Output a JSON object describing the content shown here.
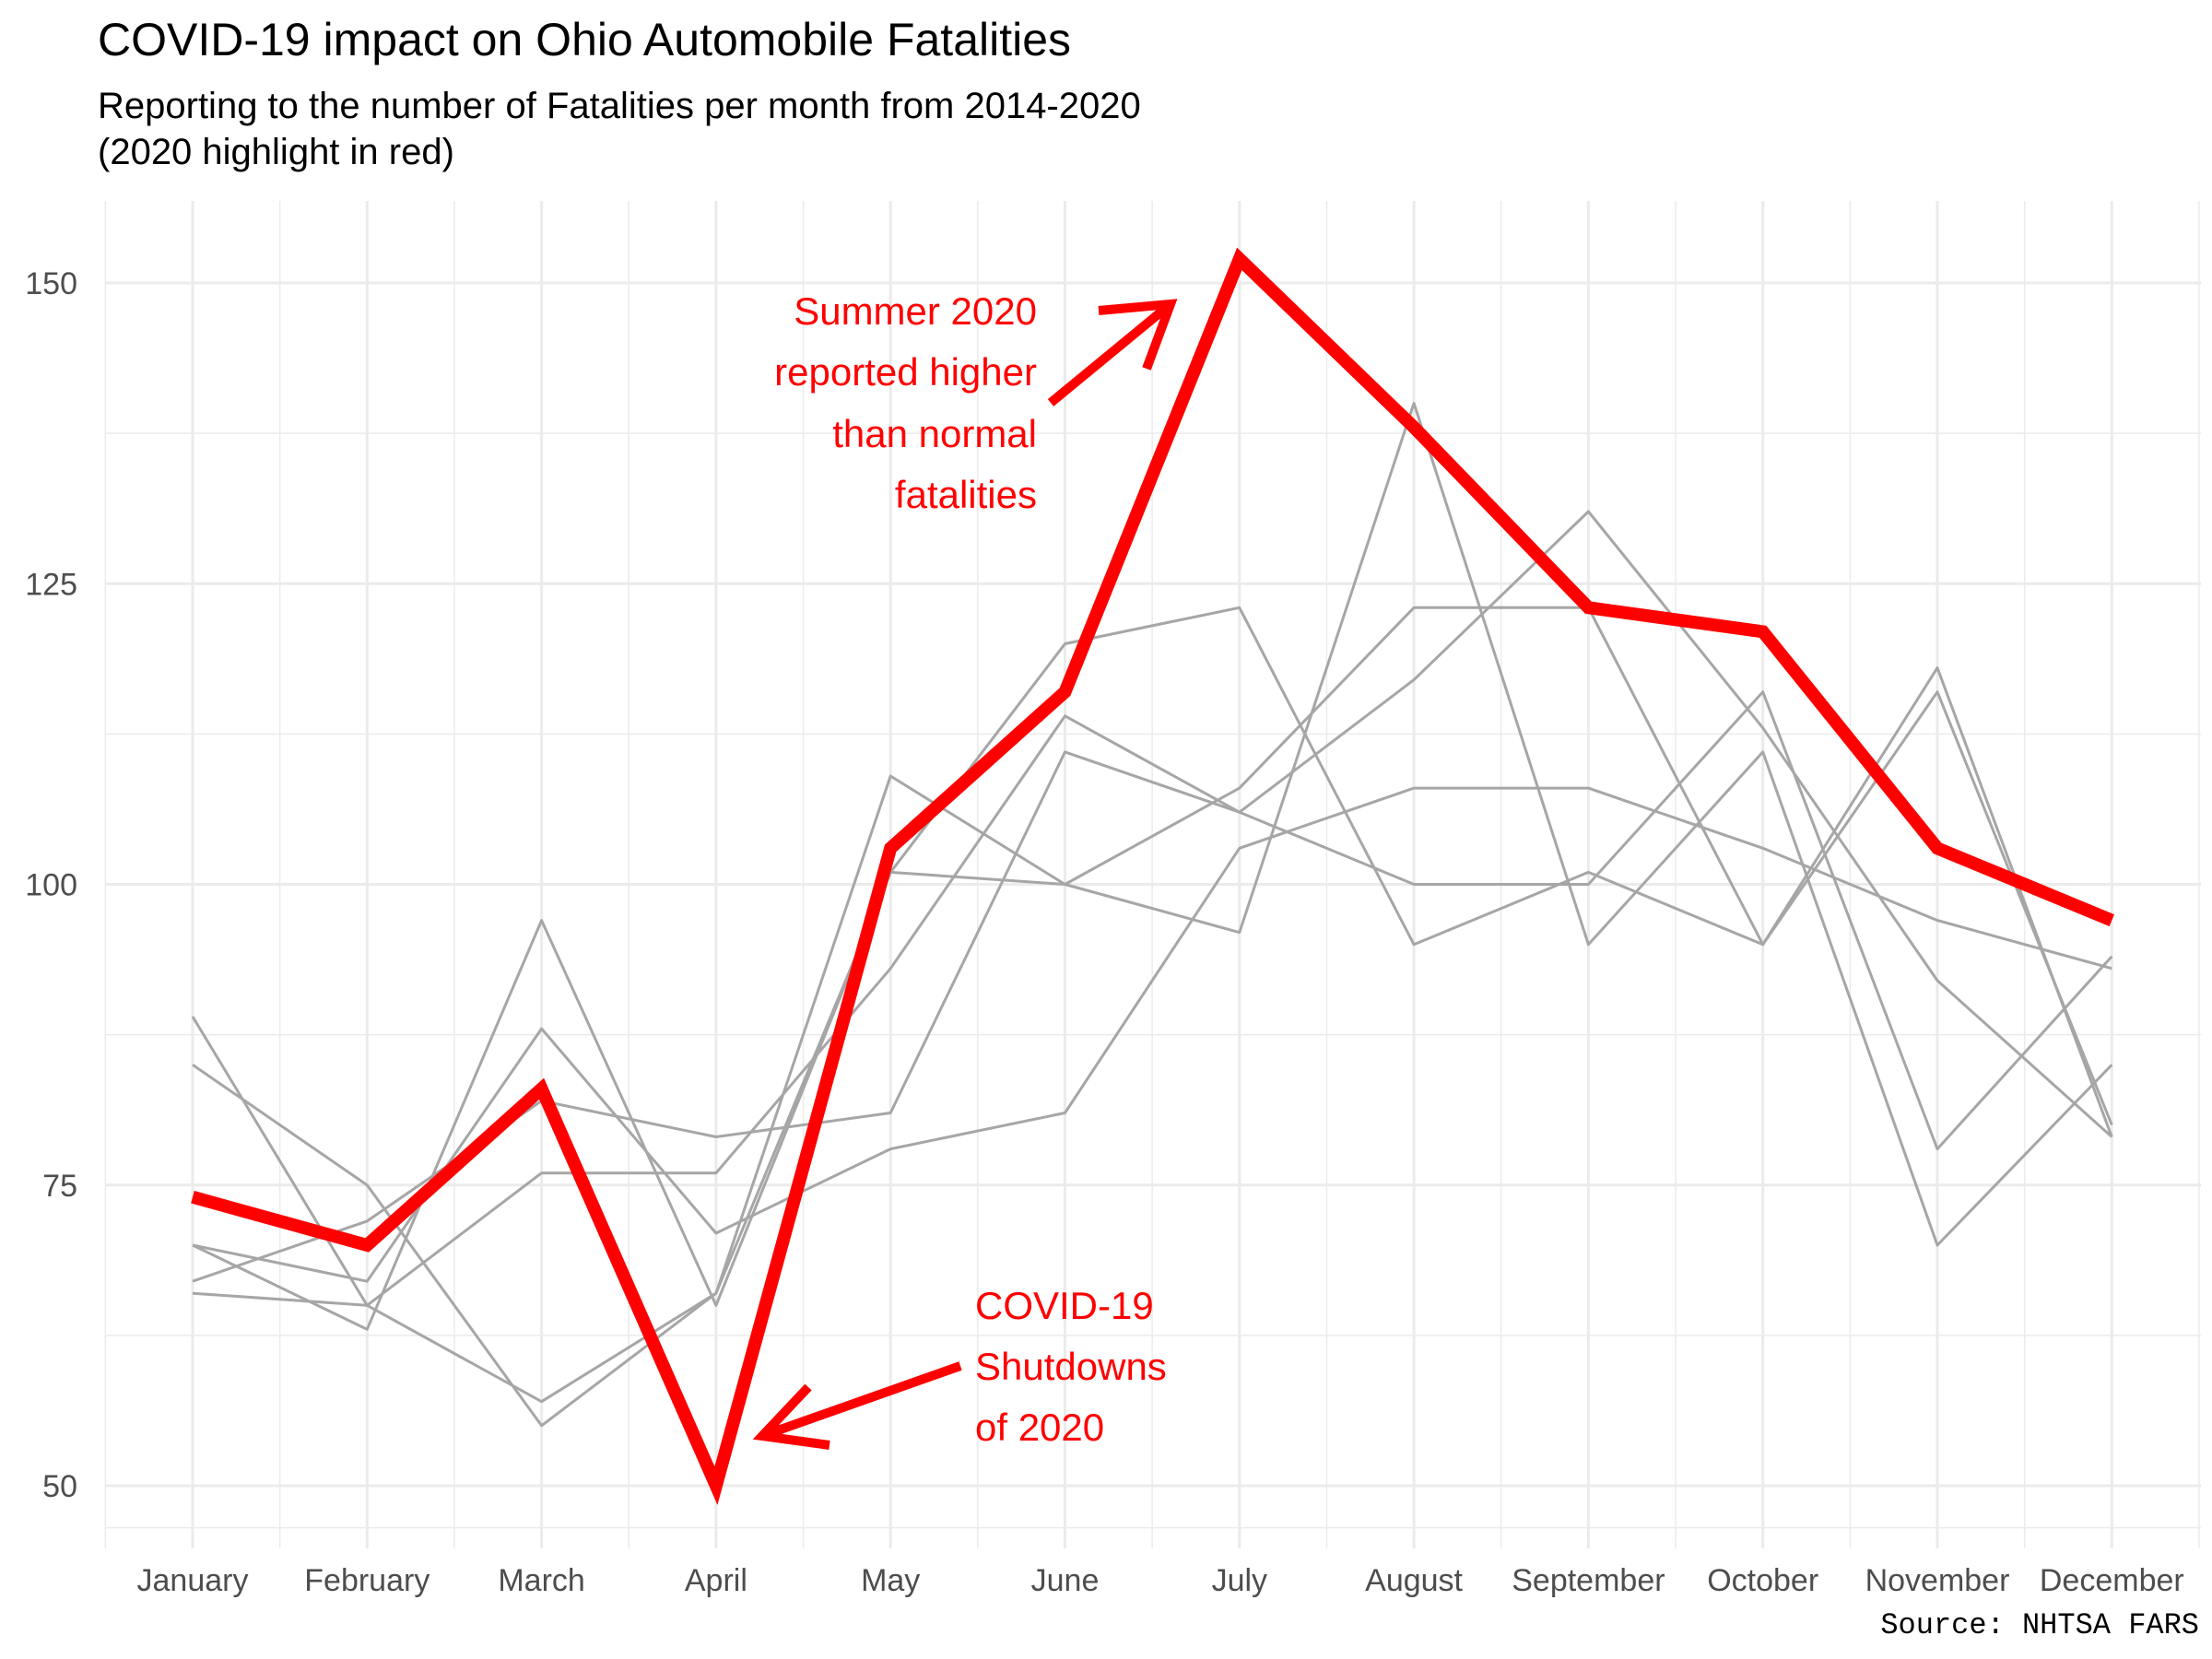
{
  "title": "COVID-19 impact on Ohio Automobile Fatalities",
  "subtitle_lines": [
    "Reporting to the number of Fatalities per month from 2014-2020",
    "(2020 highlight in red)"
  ],
  "caption": "Source: NHTSA FARS",
  "colors": {
    "background_series": "#a6a6a6",
    "highlight": "#ff0000",
    "grid": "#ebebeb",
    "annotation": "#ff0000"
  },
  "annotations": {
    "summer": {
      "lines": [
        "Summer 2020",
        "reported higher",
        "than normal",
        "fatalities"
      ]
    },
    "covid": {
      "lines": [
        "COVID-19",
        "Shutdowns",
        "of 2020"
      ]
    }
  },
  "chart_data": {
    "type": "line",
    "title": "COVID-19 impact on Ohio Automobile Fatalities",
    "xlabel": "",
    "ylabel": "",
    "categories": [
      "January",
      "February",
      "March",
      "April",
      "May",
      "June",
      "July",
      "August",
      "September",
      "October",
      "November",
      "December"
    ],
    "ylim": [
      45,
      157
    ],
    "yticks": [
      50,
      75,
      100,
      125,
      150
    ],
    "grid": true,
    "legend": "none",
    "series": [
      {
        "highlight": false,
        "values": [
          89,
          65,
          57,
          66,
          101,
          120,
          123,
          95,
          101,
          95,
          116,
          80
        ]
      },
      {
        "highlight": false,
        "values": [
          85,
          75,
          55,
          66,
          109,
          100,
          96,
          140,
          95,
          111,
          70,
          85
        ]
      },
      {
        "highlight": false,
        "values": [
          70,
          63,
          97,
          65,
          101,
          100,
          108,
          123,
          123,
          95,
          118,
          79
        ]
      },
      {
        "highlight": false,
        "values": [
          67,
          72,
          82,
          79,
          81,
          111,
          106,
          100,
          100,
          116,
          78,
          94
        ]
      },
      {
        "highlight": false,
        "values": [
          66,
          65,
          76,
          76,
          93,
          114,
          106,
          117,
          131,
          113,
          92,
          79
        ]
      },
      {
        "highlight": false,
        "values": [
          70,
          67,
          88,
          71,
          78,
          81,
          103,
          108,
          108,
          103,
          97,
          93
        ]
      },
      {
        "highlight": true,
        "values": [
          74,
          70,
          83,
          50,
          103,
          116,
          152,
          138,
          123,
          121,
          103,
          97
        ]
      }
    ]
  }
}
